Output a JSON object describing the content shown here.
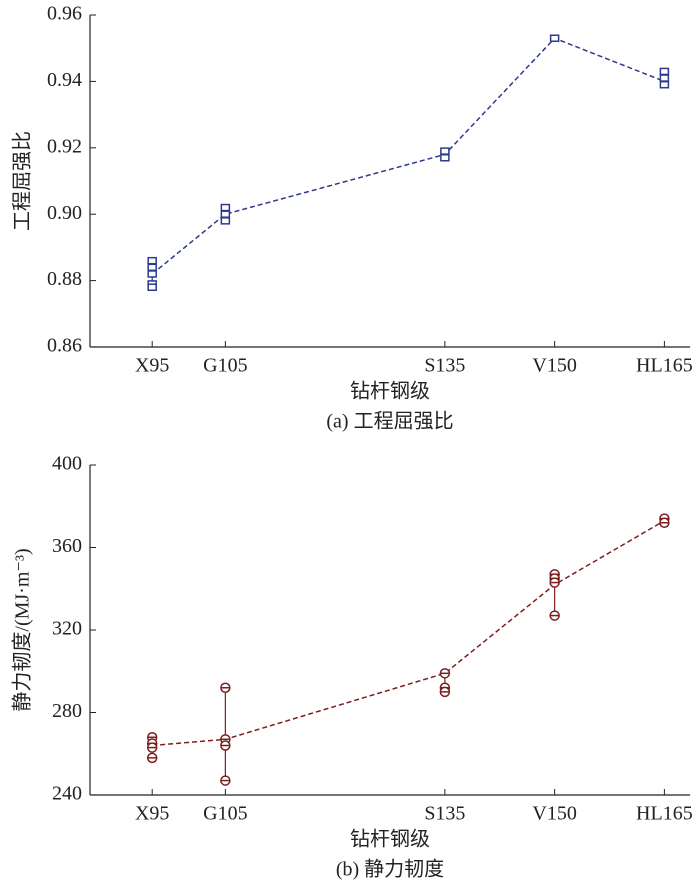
{
  "chart_data": [
    {
      "type": "line",
      "ylabel": "工程屈强比",
      "xlabel": "钻杆钢级",
      "caption": "(a) 工程屈强比",
      "color": "#2e3a8c",
      "marker": "square",
      "xlim": [
        86.5,
        168.5
      ],
      "xticks": [
        {
          "value": 95,
          "label": "X95"
        },
        {
          "value": 105,
          "label": "G105"
        },
        {
          "value": 135,
          "label": "S135"
        },
        {
          "value": 150,
          "label": "V150"
        },
        {
          "value": 165,
          "label": "HL165"
        }
      ],
      "ylim": [
        0.86,
        0.96
      ],
      "yticks": [
        0.86,
        0.88,
        {
          "value": 0.9,
          "label": "0.90"
        },
        0.92,
        0.94,
        0.96
      ],
      "x": [
        95,
        105,
        135,
        150,
        165
      ],
      "mean": [
        0.882,
        0.9,
        0.918,
        0.953,
        0.94
      ],
      "points": {
        "x": [
          95,
          95,
          95,
          95,
          95,
          105,
          105,
          105,
          135,
          135,
          150,
          165,
          165,
          165
        ],
        "y": [
          0.886,
          0.884,
          0.882,
          0.879,
          0.878,
          0.902,
          0.9,
          0.898,
          0.919,
          0.917,
          0.953,
          0.943,
          0.941,
          0.939
        ]
      }
    },
    {
      "type": "line",
      "ylabel": "静力韧度/(MJ·m⁻³)",
      "xlabel": "钻杆钢级",
      "caption": "(b) 静力韧度",
      "color": "#7a1e1e",
      "marker": "circle",
      "xlim": [
        86.5,
        168.5
      ],
      "xticks": [
        {
          "value": 95,
          "label": "X95"
        },
        {
          "value": 105,
          "label": "G105"
        },
        {
          "value": 135,
          "label": "S135"
        },
        {
          "value": 150,
          "label": "V150"
        },
        {
          "value": 165,
          "label": "HL165"
        }
      ],
      "ylim": [
        240,
        400
      ],
      "yticks": [
        240,
        280,
        320,
        360,
        400
      ],
      "x": [
        95,
        105,
        135,
        150,
        165
      ],
      "mean": [
        264,
        267,
        299,
        342,
        373
      ],
      "points": {
        "x": [
          95,
          95,
          95,
          95,
          105,
          105,
          105,
          105,
          135,
          135,
          135,
          150,
          150,
          150,
          150,
          165,
          165
        ],
        "y": [
          268,
          265,
          263,
          258,
          292,
          267,
          264,
          247,
          299,
          292,
          290,
          347,
          345,
          343,
          327,
          374,
          372
        ]
      }
    }
  ]
}
